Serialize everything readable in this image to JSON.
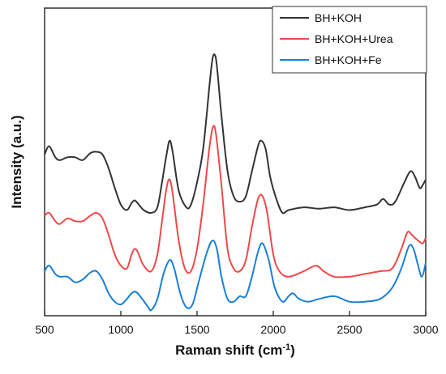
{
  "chart_data": {
    "type": "line",
    "xlabel": "Raman shift (cm",
    "xlabel_sup": "-1",
    "xlabel_end": ")",
    "ylabel": "Intensity (a.u.)",
    "xlim": [
      500,
      3000
    ],
    "ylim": [
      0,
      1
    ],
    "x_ticks": [
      "500",
      "1000",
      "1500",
      "2000",
      "2500",
      "3000"
    ],
    "y_ticks_visible": false,
    "grid": false,
    "legend_position": "top-right",
    "colors": {
      "series_1": "#333333",
      "series_2": "#f04848",
      "series_3": "#1a7fd6"
    },
    "series": [
      {
        "name": "BH+KOH",
        "points": [
          [
            500,
            0.56
          ],
          [
            530,
            0.59
          ],
          [
            570,
            0.55
          ],
          [
            600,
            0.54
          ],
          [
            650,
            0.55
          ],
          [
            700,
            0.55
          ],
          [
            750,
            0.54
          ],
          [
            800,
            0.565
          ],
          [
            840,
            0.57
          ],
          [
            880,
            0.56
          ],
          [
            920,
            0.51
          ],
          [
            960,
            0.44
          ],
          [
            1000,
            0.38
          ],
          [
            1040,
            0.36
          ],
          [
            1070,
            0.385
          ],
          [
            1090,
            0.395
          ],
          [
            1110,
            0.385
          ],
          [
            1150,
            0.36
          ],
          [
            1200,
            0.35
          ],
          [
            1240,
            0.37
          ],
          [
            1270,
            0.46
          ],
          [
            1300,
            0.56
          ],
          [
            1320,
            0.61
          ],
          [
            1340,
            0.57
          ],
          [
            1380,
            0.43
          ],
          [
            1430,
            0.37
          ],
          [
            1460,
            0.38
          ],
          [
            1500,
            0.46
          ],
          [
            1540,
            0.58
          ],
          [
            1580,
            0.8
          ],
          [
            1600,
            0.9
          ],
          [
            1615,
            0.92
          ],
          [
            1630,
            0.88
          ],
          [
            1660,
            0.7
          ],
          [
            1700,
            0.5
          ],
          [
            1740,
            0.41
          ],
          [
            1780,
            0.39
          ],
          [
            1820,
            0.41
          ],
          [
            1860,
            0.5
          ],
          [
            1900,
            0.59
          ],
          [
            1920,
            0.61
          ],
          [
            1950,
            0.58
          ],
          [
            1980,
            0.48
          ],
          [
            2020,
            0.4
          ],
          [
            2060,
            0.35
          ],
          [
            2100,
            0.36
          ],
          [
            2200,
            0.37
          ],
          [
            2300,
            0.365
          ],
          [
            2400,
            0.37
          ],
          [
            2500,
            0.36
          ],
          [
            2600,
            0.37
          ],
          [
            2680,
            0.38
          ],
          [
            2720,
            0.4
          ],
          [
            2760,
            0.38
          ],
          [
            2800,
            0.39
          ],
          [
            2860,
            0.46
          ],
          [
            2900,
            0.5
          ],
          [
            2930,
            0.48
          ],
          [
            2960,
            0.44
          ],
          [
            2980,
            0.45
          ],
          [
            3000,
            0.47
          ]
        ]
      },
      {
        "name": "BH+KOH+Urea",
        "points": [
          [
            500,
            0.34
          ],
          [
            530,
            0.35
          ],
          [
            570,
            0.32
          ],
          [
            600,
            0.31
          ],
          [
            650,
            0.33
          ],
          [
            700,
            0.32
          ],
          [
            750,
            0.32
          ],
          [
            800,
            0.34
          ],
          [
            840,
            0.35
          ],
          [
            880,
            0.33
          ],
          [
            920,
            0.27
          ],
          [
            960,
            0.2
          ],
          [
            1000,
            0.16
          ],
          [
            1040,
            0.15
          ],
          [
            1070,
            0.2
          ],
          [
            1090,
            0.22
          ],
          [
            1110,
            0.21
          ],
          [
            1150,
            0.16
          ],
          [
            1200,
            0.14
          ],
          [
            1240,
            0.2
          ],
          [
            1270,
            0.32
          ],
          [
            1300,
            0.44
          ],
          [
            1320,
            0.47
          ],
          [
            1340,
            0.42
          ],
          [
            1380,
            0.25
          ],
          [
            1420,
            0.15
          ],
          [
            1460,
            0.14
          ],
          [
            1500,
            0.22
          ],
          [
            1540,
            0.38
          ],
          [
            1580,
            0.58
          ],
          [
            1605,
            0.66
          ],
          [
            1625,
            0.63
          ],
          [
            1660,
            0.45
          ],
          [
            1700,
            0.22
          ],
          [
            1740,
            0.15
          ],
          [
            1780,
            0.14
          ],
          [
            1820,
            0.18
          ],
          [
            1860,
            0.3
          ],
          [
            1900,
            0.4
          ],
          [
            1930,
            0.41
          ],
          [
            1960,
            0.35
          ],
          [
            2000,
            0.2
          ],
          [
            2040,
            0.14
          ],
          [
            2100,
            0.12
          ],
          [
            2200,
            0.14
          ],
          [
            2280,
            0.16
          ],
          [
            2330,
            0.14
          ],
          [
            2400,
            0.12
          ],
          [
            2500,
            0.12
          ],
          [
            2600,
            0.13
          ],
          [
            2700,
            0.14
          ],
          [
            2780,
            0.15
          ],
          [
            2840,
            0.22
          ],
          [
            2880,
            0.28
          ],
          [
            2910,
            0.27
          ],
          [
            2950,
            0.25
          ],
          [
            2980,
            0.24
          ],
          [
            3000,
            0.26
          ]
        ]
      },
      {
        "name": "BH+KOH+Fe",
        "points": [
          [
            500,
            0.14
          ],
          [
            530,
            0.16
          ],
          [
            570,
            0.13
          ],
          [
            600,
            0.12
          ],
          [
            650,
            0.12
          ],
          [
            700,
            0.1
          ],
          [
            750,
            0.11
          ],
          [
            800,
            0.135
          ],
          [
            840,
            0.14
          ],
          [
            880,
            0.11
          ],
          [
            920,
            0.06
          ],
          [
            960,
            0.03
          ],
          [
            1000,
            0.02
          ],
          [
            1040,
            0.04
          ],
          [
            1070,
            0.06
          ],
          [
            1100,
            0.065
          ],
          [
            1140,
            0.04
          ],
          [
            1180,
            0.01
          ],
          [
            1200,
            0.0
          ],
          [
            1240,
            0.04
          ],
          [
            1280,
            0.13
          ],
          [
            1320,
            0.18
          ],
          [
            1350,
            0.15
          ],
          [
            1390,
            0.06
          ],
          [
            1430,
            0.01
          ],
          [
            1470,
            0.02
          ],
          [
            1510,
            0.1
          ],
          [
            1560,
            0.2
          ],
          [
            1600,
            0.25
          ],
          [
            1630,
            0.22
          ],
          [
            1660,
            0.12
          ],
          [
            1700,
            0.04
          ],
          [
            1740,
            0.03
          ],
          [
            1780,
            0.05
          ],
          [
            1820,
            0.05
          ],
          [
            1860,
            0.12
          ],
          [
            1900,
            0.21
          ],
          [
            1930,
            0.24
          ],
          [
            1970,
            0.18
          ],
          [
            2010,
            0.08
          ],
          [
            2060,
            0.03
          ],
          [
            2100,
            0.05
          ],
          [
            2130,
            0.06
          ],
          [
            2170,
            0.04
          ],
          [
            2230,
            0.03
          ],
          [
            2300,
            0.04
          ],
          [
            2400,
            0.05
          ],
          [
            2500,
            0.03
          ],
          [
            2600,
            0.03
          ],
          [
            2700,
            0.04
          ],
          [
            2780,
            0.08
          ],
          [
            2840,
            0.15
          ],
          [
            2890,
            0.23
          ],
          [
            2920,
            0.22
          ],
          [
            2950,
            0.16
          ],
          [
            2975,
            0.12
          ],
          [
            3000,
            0.17
          ]
        ]
      }
    ]
  }
}
